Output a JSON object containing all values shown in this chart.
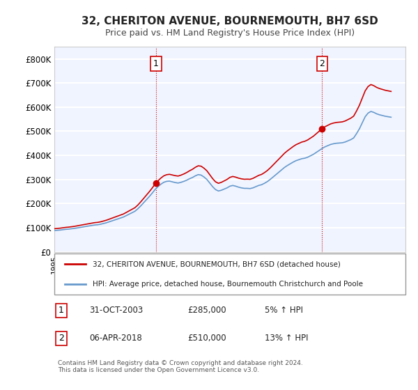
{
  "title": "32, CHERITON AVENUE, BOURNEMOUTH, BH7 6SD",
  "subtitle": "Price paid vs. HM Land Registry's House Price Index (HPI)",
  "ylabel_ticks": [
    "£0",
    "£100K",
    "£200K",
    "£300K",
    "£400K",
    "£500K",
    "£600K",
    "£700K",
    "£800K"
  ],
  "ytick_values": [
    0,
    100000,
    200000,
    300000,
    400000,
    500000,
    600000,
    700000,
    800000
  ],
  "ylim": [
    0,
    850000
  ],
  "xlim_start": 1995,
  "xlim_end": 2025.5,
  "background_color": "#f0f4ff",
  "plot_bg_color": "#f0f4ff",
  "grid_color": "#ffffff",
  "line_color_hpi": "#6699cc",
  "line_color_price": "#cc0000",
  "sale1_x": 2003.833,
  "sale1_y": 285000,
  "sale1_label": "1",
  "sale2_x": 2018.25,
  "sale2_y": 510000,
  "sale2_label": "2",
  "vline_color": "#cc0000",
  "vline_style": ":",
  "legend_line1": "32, CHERITON AVENUE, BOURNEMOUTH, BH7 6SD (detached house)",
  "legend_line2": "HPI: Average price, detached house, Bournemouth Christchurch and Poole",
  "table_row1": [
    "1",
    "31-OCT-2003",
    "£285,000",
    "5% ↑ HPI"
  ],
  "table_row2": [
    "2",
    "06-APR-2018",
    "£510,000",
    "13% ↑ HPI"
  ],
  "footer": "Contains HM Land Registry data © Crown copyright and database right 2024.\nThis data is licensed under the Open Government Licence v3.0.",
  "hpi_years": [
    1995,
    1995.25,
    1995.5,
    1995.75,
    1996,
    1996.25,
    1996.5,
    1996.75,
    1997,
    1997.25,
    1997.5,
    1997.75,
    1998,
    1998.25,
    1998.5,
    1998.75,
    1999,
    1999.25,
    1999.5,
    1999.75,
    2000,
    2000.25,
    2000.5,
    2000.75,
    2001,
    2001.25,
    2001.5,
    2001.75,
    2002,
    2002.25,
    2002.5,
    2002.75,
    2003,
    2003.25,
    2003.5,
    2003.75,
    2004,
    2004.25,
    2004.5,
    2004.75,
    2005,
    2005.25,
    2005.5,
    2005.75,
    2006,
    2006.25,
    2006.5,
    2006.75,
    2007,
    2007.25,
    2007.5,
    2007.75,
    2008,
    2008.25,
    2008.5,
    2008.75,
    2009,
    2009.25,
    2009.5,
    2009.75,
    2010,
    2010.25,
    2010.5,
    2010.75,
    2011,
    2011.25,
    2011.5,
    2011.75,
    2012,
    2012.25,
    2012.5,
    2012.75,
    2013,
    2013.25,
    2013.5,
    2013.75,
    2014,
    2014.25,
    2014.5,
    2014.75,
    2015,
    2015.25,
    2015.5,
    2015.75,
    2016,
    2016.25,
    2016.5,
    2016.75,
    2017,
    2017.25,
    2017.5,
    2017.75,
    2018,
    2018.25,
    2018.5,
    2018.75,
    2019,
    2019.25,
    2019.5,
    2019.75,
    2020,
    2020.25,
    2020.5,
    2020.75,
    2021,
    2021.25,
    2021.5,
    2021.75,
    2022,
    2022.25,
    2022.5,
    2022.75,
    2023,
    2023.25,
    2023.5,
    2023.75,
    2024,
    2024.25
  ],
  "hpi_values": [
    88000,
    89000,
    90000,
    91500,
    93000,
    94000,
    95500,
    97000,
    99000,
    101000,
    103000,
    105000,
    107000,
    109000,
    111000,
    112000,
    114000,
    117000,
    120000,
    124000,
    128000,
    132000,
    136000,
    140000,
    144000,
    150000,
    156000,
    162000,
    168000,
    178000,
    190000,
    203000,
    216000,
    229000,
    243000,
    258000,
    270000,
    280000,
    288000,
    292000,
    293000,
    290000,
    287000,
    285000,
    288000,
    292000,
    297000,
    303000,
    308000,
    315000,
    320000,
    318000,
    310000,
    300000,
    285000,
    270000,
    258000,
    252000,
    255000,
    260000,
    265000,
    272000,
    275000,
    272000,
    268000,
    265000,
    263000,
    263000,
    262000,
    265000,
    270000,
    275000,
    278000,
    284000,
    291000,
    300000,
    310000,
    320000,
    330000,
    340000,
    350000,
    358000,
    365000,
    372000,
    378000,
    382000,
    386000,
    388000,
    392000,
    398000,
    404000,
    412000,
    420000,
    428000,
    435000,
    440000,
    445000,
    448000,
    450000,
    451000,
    452000,
    455000,
    460000,
    465000,
    472000,
    490000,
    510000,
    535000,
    560000,
    575000,
    582000,
    578000,
    572000,
    568000,
    565000,
    562000,
    560000,
    558000
  ],
  "price_years": [
    2003.833,
    2018.25
  ],
  "price_values": [
    285000,
    510000
  ]
}
